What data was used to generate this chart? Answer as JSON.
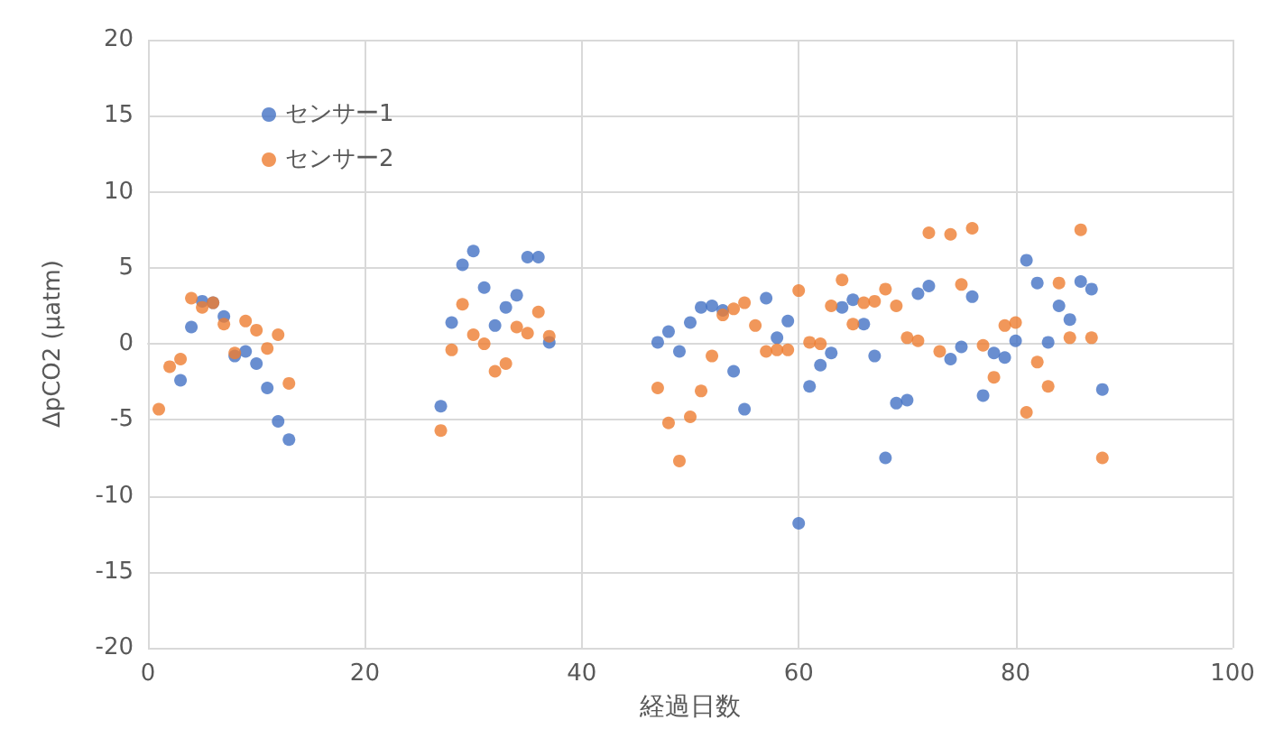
{
  "chart_data": {
    "type": "scatter",
    "xlabel": "経過日数",
    "ylabel": "ΔpCO2 (µatm)",
    "xlim": [
      0,
      100
    ],
    "xticks": [
      0,
      20,
      40,
      60,
      80,
      100
    ],
    "ylim": [
      -20,
      20
    ],
    "yticks": [
      -20,
      -15,
      -10,
      -5,
      0,
      5,
      10,
      15,
      20
    ],
    "grid": true,
    "legend": "top left",
    "marker": "circle",
    "series": [
      {
        "name": "センサー1",
        "color": "#4472c4",
        "x": [
          3,
          4,
          5,
          6,
          7,
          8,
          9,
          10,
          11,
          12,
          13,
          27,
          28,
          29,
          30,
          31,
          32,
          33,
          34,
          35,
          36,
          37,
          47,
          48,
          49,
          50,
          51,
          52,
          53,
          54,
          55,
          57,
          58,
          59,
          60,
          61,
          62,
          63,
          64,
          65,
          66,
          67,
          68,
          69,
          70,
          71,
          72,
          74,
          75,
          76,
          77,
          78,
          79,
          80,
          81,
          82,
          83,
          84,
          85,
          86,
          87,
          88
        ],
        "values": [
          -2.4,
          1.1,
          2.8,
          2.7,
          1.8,
          -0.8,
          -0.5,
          -1.3,
          -2.9,
          -5.1,
          -6.3,
          -4.1,
          1.4,
          5.2,
          6.1,
          3.7,
          1.2,
          2.4,
          3.2,
          5.7,
          5.7,
          0.1,
          0.1,
          0.8,
          -0.5,
          1.4,
          2.4,
          2.5,
          2.2,
          -1.8,
          -4.3,
          3.0,
          0.4,
          1.5,
          -11.8,
          -2.8,
          -1.4,
          -0.6,
          2.4,
          2.9,
          1.3,
          -0.8,
          -7.5,
          -3.9,
          -3.7,
          3.3,
          3.8,
          -1.0,
          -0.2,
          3.1,
          -3.4,
          -0.6,
          -0.9,
          0.2,
          5.5,
          4.0,
          0.1,
          2.5,
          1.6,
          4.1,
          3.6,
          -3.0
        ]
      },
      {
        "name": "センサー2",
        "color": "#ed7d31",
        "x": [
          1,
          2,
          3,
          4,
          5,
          6,
          7,
          8,
          9,
          10,
          11,
          12,
          13,
          27,
          28,
          29,
          30,
          31,
          32,
          33,
          34,
          35,
          36,
          37,
          47,
          48,
          49,
          50,
          51,
          52,
          53,
          54,
          55,
          56,
          57,
          58,
          59,
          60,
          61,
          62,
          63,
          64,
          65,
          66,
          67,
          68,
          69,
          70,
          71,
          72,
          73,
          74,
          75,
          76,
          77,
          78,
          79,
          80,
          81,
          82,
          83,
          84,
          85,
          86,
          87,
          88
        ],
        "values": [
          -4.3,
          -1.5,
          -1.0,
          3.0,
          2.4,
          2.7,
          1.3,
          -0.6,
          1.5,
          0.9,
          -0.3,
          0.6,
          -2.6,
          -5.7,
          -0.4,
          2.6,
          0.6,
          0.0,
          -1.8,
          -1.3,
          1.1,
          0.7,
          2.1,
          0.5,
          -2.9,
          -5.2,
          -7.7,
          -4.8,
          -3.1,
          -0.8,
          1.9,
          2.3,
          2.7,
          1.2,
          -0.5,
          -0.4,
          -0.4,
          3.5,
          0.1,
          0.0,
          2.5,
          4.2,
          1.3,
          2.7,
          2.8,
          3.6,
          2.5,
          0.4,
          0.2,
          7.3,
          -0.5,
          7.2,
          3.9,
          7.6,
          -0.1,
          -2.2,
          1.2,
          1.4,
          -4.5,
          -1.2,
          -2.8,
          4.0,
          0.4,
          7.5,
          0.4,
          -7.5
        ]
      }
    ]
  }
}
